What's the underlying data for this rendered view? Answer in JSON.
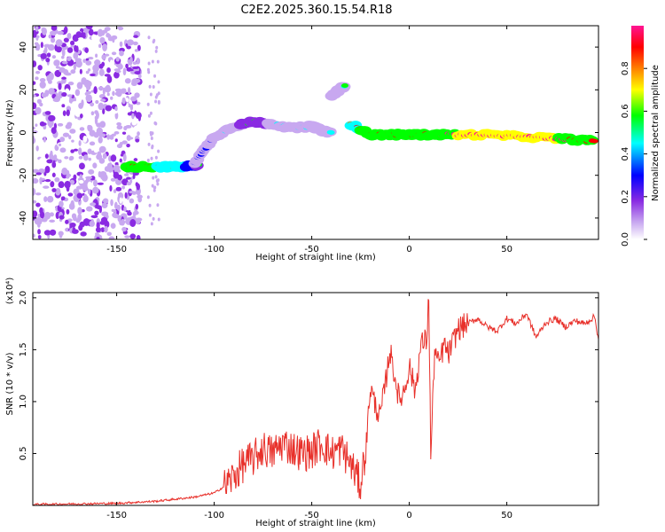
{
  "title": "C2E2.2025.360.15.54.R18",
  "chart_data": [
    {
      "type": "heatmap",
      "xlabel": "Height of straight line (km)",
      "ylabel": "Frequency (Hz)",
      "xlim": [
        -193,
        97
      ],
      "ylim": [
        -50,
        50
      ],
      "xticks": [
        -150,
        -100,
        -50,
        0,
        50
      ],
      "yticks": [
        -40,
        -20,
        0,
        20,
        40
      ],
      "xtick_labels": [
        "-150",
        "-100",
        "-50",
        "0",
        "50"
      ],
      "ytick_labels": [
        "-40",
        "-20",
        "0",
        "20",
        "40"
      ],
      "colorbar": {
        "label": "Normalized spectral amplitude",
        "range": [
          0,
          1
        ],
        "ticks": [
          0.0,
          0.2,
          0.4,
          0.6,
          0.8
        ],
        "tick_labels": [
          "0.0",
          "0.2",
          "0.4",
          "0.6",
          "0.8"
        ],
        "colors": [
          "#ffffff",
          "#c8a8f0",
          "#8a2be2",
          "#0000ff",
          "#00ffff",
          "#00ff00",
          "#ffff00",
          "#ff8000",
          "#ff0000",
          "#ff1493"
        ]
      },
      "features": [
        {
          "name": "noise region",
          "x_range": [
            -193,
            -138
          ],
          "f_range": [
            -50,
            50
          ],
          "amplitude": 0.15
        },
        {
          "name": "low band",
          "x": [
            -145,
            -135,
            -125,
            -115,
            -108
          ],
          "f": [
            -16,
            -16,
            -16,
            -16,
            -15
          ],
          "amplitude": [
            0.95,
            0.9,
            0.8,
            0.75,
            0.6
          ]
        },
        {
          "name": "mid cluster",
          "x": [
            -110,
            -100,
            -90,
            -80,
            -70,
            -60,
            -50,
            -45,
            -40
          ],
          "f": [
            -14,
            -2,
            3,
            5,
            4,
            2,
            3,
            1,
            0
          ],
          "amplitude": [
            0.3,
            0.4,
            0.5,
            0.55,
            0.5,
            0.45,
            0.5,
            0.45,
            0.4
          ]
        },
        {
          "name": "upper branch",
          "x": [
            -40,
            -36,
            -33
          ],
          "f": [
            17,
            20,
            22
          ],
          "amplitude": [
            0.3,
            0.4,
            0.5
          ]
        },
        {
          "name": "main trace",
          "x": [
            -30,
            -20,
            -10,
            0,
            10,
            20,
            40,
            60,
            80,
            95
          ],
          "f": [
            4,
            -1,
            -1,
            -1,
            -1,
            -1,
            -1,
            -2,
            -3,
            -4
          ],
          "amplitude": [
            0.8,
            0.9,
            0.85,
            0.9,
            0.95,
            0.95,
            1.0,
            1.0,
            0.95,
            0.9
          ]
        }
      ]
    },
    {
      "type": "line",
      "xlabel": "Height of straight line (km)",
      "ylabel": "SNR (10 * v/v)",
      "y_multiplier_label": "(x10⁴)",
      "xlim": [
        -193,
        97
      ],
      "ylim": [
        0,
        2.05
      ],
      "xticks": [
        -150,
        -100,
        -50,
        0,
        50
      ],
      "yticks": [
        0.5,
        1.0,
        1.5,
        2.0
      ],
      "xtick_labels": [
        "-150",
        "-100",
        "-50",
        "0",
        "50"
      ],
      "ytick_labels": [
        "0.5",
        "1.0",
        "1.5",
        "2.0"
      ],
      "line_color": "#e8302a",
      "series": [
        {
          "name": "SNR",
          "x": [
            -193,
            -170,
            -150,
            -130,
            -120,
            -110,
            -100,
            -95,
            -90,
            -85,
            -80,
            -75,
            -70,
            -65,
            -60,
            -55,
            -50,
            -45,
            -40,
            -35,
            -30,
            -25,
            -22,
            -20,
            -18,
            -15,
            -12,
            -10,
            -8,
            -5,
            -2,
            0,
            3,
            6,
            9,
            10,
            11,
            13,
            15,
            18,
            20,
            25,
            30,
            35,
            40,
            45,
            50,
            55,
            60,
            65,
            70,
            75,
            80,
            85,
            90,
            95,
            97
          ],
          "y": [
            0.01,
            0.015,
            0.02,
            0.04,
            0.06,
            0.08,
            0.12,
            0.18,
            0.28,
            0.4,
            0.45,
            0.55,
            0.5,
            0.6,
            0.55,
            0.5,
            0.52,
            0.6,
            0.5,
            0.55,
            0.4,
            0.2,
            0.6,
            1.15,
            1.0,
            0.85,
            1.2,
            1.5,
            1.3,
            1.0,
            1.15,
            1.35,
            1.1,
            1.55,
            1.6,
            2.05,
            0.45,
            1.5,
            1.35,
            1.55,
            1.45,
            1.7,
            1.75,
            1.8,
            1.72,
            1.68,
            1.8,
            1.75,
            1.85,
            1.62,
            1.76,
            1.8,
            1.72,
            1.78,
            1.75,
            1.82,
            1.6
          ]
        }
      ]
    }
  ]
}
